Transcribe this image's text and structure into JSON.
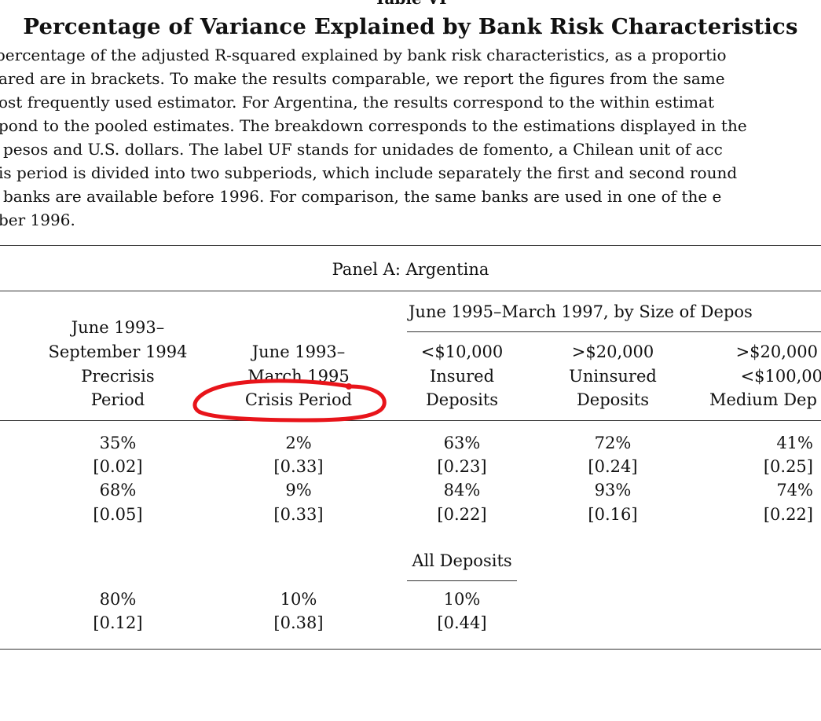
{
  "table_label": "Table VI",
  "title": "Percentage of Variance Explained by Bank Risk Characteristics",
  "caption_lines": [
    "percentage of the adjusted R-squared explained by bank risk characteristics, as a proportio",
    "ared are in brackets. To make the results comparable, we report the figures from the same",
    "ost frequently used estimator. For Argentina, the results correspond to the within estimat",
    "pond to the pooled estimates. The breakdown corresponds to the estimations displayed in the",
    "pesos and U.S. dollars. The label UF stands for unidades de fomento, a Chilean unit of acc",
    "is period is divided into two subperiods, which include separately the first and second round",
    "banks are available before 1996. For comparison, the same banks are used in one of the e",
    "ber 1996."
  ],
  "panel_title": "Panel A: Argentina",
  "group_header": "June 1995–March 1997, by Size of Depos",
  "columns": [
    [
      "June 1993–",
      "September 1994",
      "Precrisis",
      "Period"
    ],
    [
      "June 1993–",
      "March 1995",
      "Crisis Period"
    ],
    [
      "<$10,000",
      "Insured",
      "Deposits"
    ],
    [
      ">$20,000",
      "Uninsured",
      "Deposits"
    ],
    [
      ">$20,000",
      "<$100,00",
      "Medium Dep"
    ]
  ],
  "rows": [
    [
      "35%",
      "2%",
      "63%",
      "72%",
      "41%"
    ],
    [
      "[0.02]",
      "[0.33]",
      "[0.23]",
      "[0.24]",
      "[0.25]"
    ],
    [
      "68%",
      "9%",
      "84%",
      "93%",
      "74%"
    ],
    [
      "[0.05]",
      "[0.33]",
      "[0.22]",
      "[0.16]",
      "[0.22]"
    ]
  ],
  "all_deposits_label": "All Deposits",
  "bottom_rows": [
    [
      "80%",
      "10%",
      "10%"
    ],
    [
      "[0.12]",
      "[0.38]",
      "[0.44]"
    ]
  ],
  "annotation_color": "#e8141a"
}
